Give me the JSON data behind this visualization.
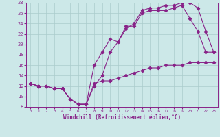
{
  "background_color": "#cce8e8",
  "grid_color": "#aacccc",
  "line_color": "#882288",
  "marker_color": "#882288",
  "xlim": [
    -0.5,
    23.5
  ],
  "ylim": [
    8,
    28
  ],
  "xticks": [
    0,
    1,
    2,
    3,
    4,
    5,
    6,
    7,
    8,
    9,
    10,
    11,
    12,
    13,
    14,
    15,
    16,
    17,
    18,
    19,
    20,
    21,
    22,
    23
  ],
  "yticks": [
    8,
    10,
    12,
    14,
    16,
    18,
    20,
    22,
    24,
    26,
    28
  ],
  "xlabel": "Windchill (Refroidissement éolien,°C)",
  "series1_x": [
    0,
    1,
    2,
    3,
    4,
    5,
    6,
    7,
    8,
    9,
    10,
    11,
    12,
    13,
    14,
    15,
    16,
    17,
    18,
    19,
    20,
    21,
    22,
    23
  ],
  "series1_y": [
    12.5,
    12.0,
    12.0,
    11.5,
    11.5,
    9.5,
    8.5,
    8.5,
    12.5,
    13.0,
    13.0,
    13.5,
    14.0,
    14.5,
    15.0,
    15.5,
    15.5,
    16.0,
    16.0,
    16.0,
    16.5,
    16.5,
    16.5,
    16.5
  ],
  "series2_x": [
    0,
    1,
    2,
    3,
    4,
    5,
    6,
    7,
    8,
    9,
    10,
    11,
    12,
    13,
    14,
    15,
    16,
    17,
    18,
    19,
    20,
    21,
    22,
    23
  ],
  "series2_y": [
    12.5,
    12.0,
    12.0,
    11.5,
    11.5,
    9.5,
    8.5,
    8.5,
    16.0,
    18.5,
    21.0,
    20.5,
    23.5,
    23.5,
    26.0,
    26.5,
    26.5,
    26.5,
    27.0,
    27.5,
    25.0,
    22.5,
    18.5,
    18.5
  ],
  "series3_x": [
    0,
    1,
    2,
    3,
    4,
    5,
    6,
    7,
    8,
    9,
    10,
    11,
    12,
    13,
    14,
    15,
    16,
    17,
    18,
    19,
    20,
    21,
    22,
    23
  ],
  "series3_y": [
    12.5,
    12.0,
    12.0,
    11.5,
    11.5,
    9.5,
    8.5,
    8.5,
    12.0,
    14.0,
    18.5,
    20.5,
    23.0,
    24.0,
    26.5,
    27.0,
    27.0,
    27.5,
    27.5,
    28.0,
    28.0,
    27.0,
    22.5,
    18.5
  ]
}
